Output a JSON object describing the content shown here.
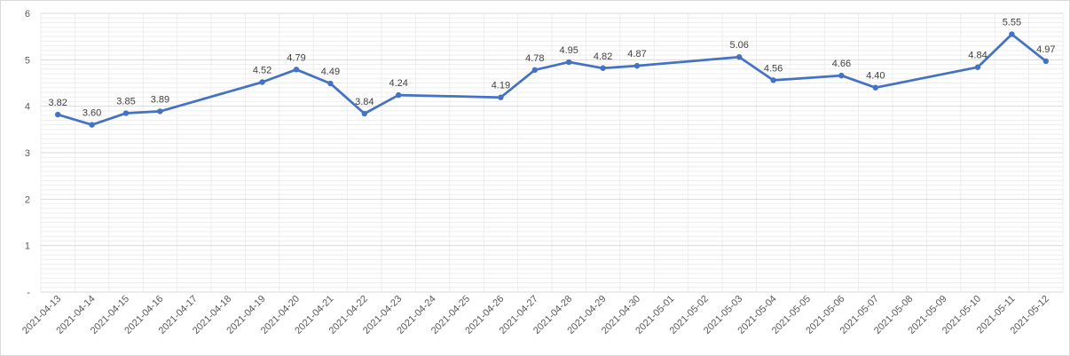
{
  "chart_data": {
    "type": "line",
    "title": "",
    "xlabel": "",
    "ylabel": "",
    "ylim": [
      0,
      6
    ],
    "y_ticks": [
      0,
      1,
      2,
      3,
      4,
      5,
      6
    ],
    "y_tick_labels": [
      "-",
      "1",
      "2",
      "3",
      "4",
      "5",
      "6"
    ],
    "categories": [
      "2021-04-13",
      "2021-04-14",
      "2021-04-15",
      "2021-04-16",
      "2021-04-17",
      "2021-04-18",
      "2021-04-19",
      "2021-04-20",
      "2021-04-21",
      "2021-04-22",
      "2021-04-23",
      "2021-04-24",
      "2021-04-25",
      "2021-04-26",
      "2021-04-27",
      "2021-04-28",
      "2021-04-29",
      "2021-04-30",
      "2021-05-01",
      "2021-05-02",
      "2021-05-03",
      "2021-05-04",
      "2021-05-05",
      "2021-05-06",
      "2021-05-07",
      "2021-05-08",
      "2021-05-09",
      "2021-05-10",
      "2021-05-11",
      "2021-05-12"
    ],
    "series": [
      {
        "values": [
          3.82,
          3.6,
          3.85,
          3.89,
          null,
          null,
          4.52,
          4.79,
          4.49,
          3.84,
          4.24,
          null,
          null,
          4.19,
          4.78,
          4.95,
          4.82,
          4.87,
          null,
          null,
          5.06,
          4.56,
          null,
          4.66,
          4.4,
          null,
          null,
          4.84,
          5.55,
          4.97
        ],
        "data_labels": [
          "3.82",
          "3.60",
          "3.85",
          "3.89",
          null,
          null,
          "4.52",
          "4.79",
          "4.49",
          "3.84",
          "4.24",
          null,
          null,
          "4.19",
          "4.78",
          "4.95",
          "4.82",
          "4.87",
          null,
          null,
          "5.06",
          "4.56",
          null,
          "4.66",
          "4.40",
          null,
          null,
          "4.84",
          "5.55",
          "4.97"
        ]
      }
    ],
    "grid": true,
    "minor_grid": true,
    "legend": "none",
    "colors": {
      "line": "#4472c4",
      "major_grid": "#d9d9d9",
      "minor_grid": "#ededed",
      "text": "#595959"
    }
  }
}
